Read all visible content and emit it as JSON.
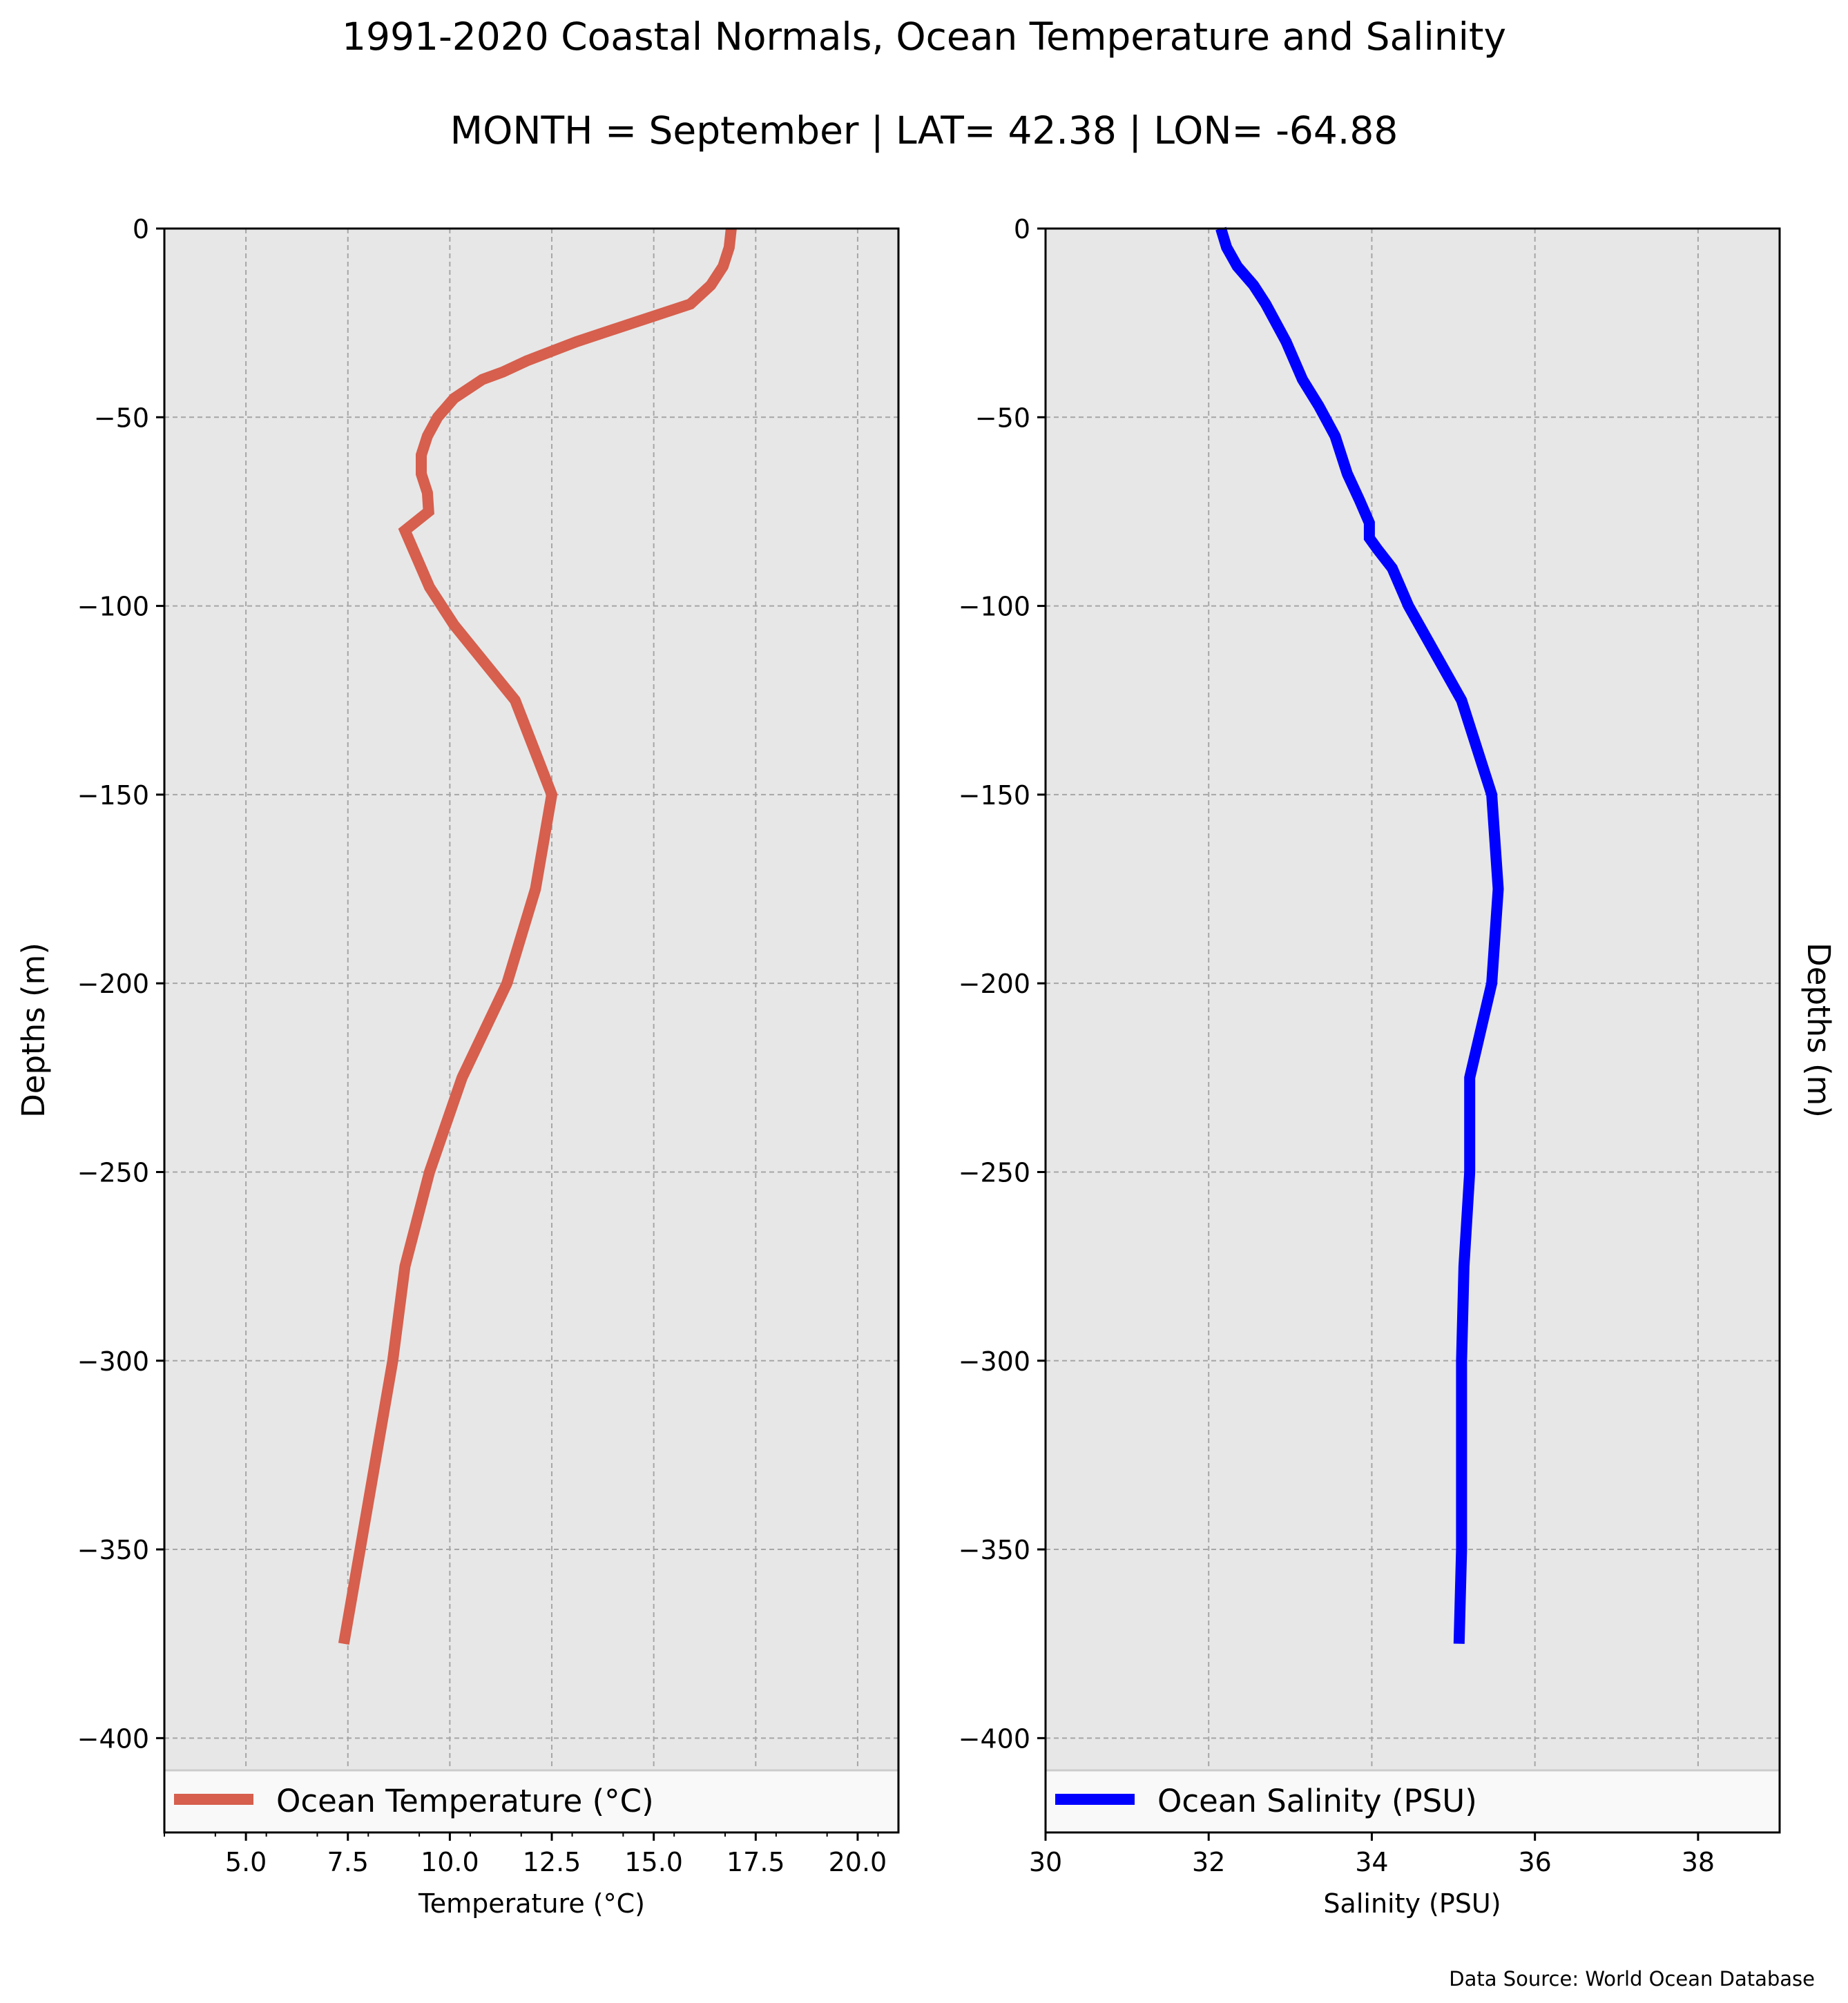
{
  "title": "1991-2020 Coastal Normals, Ocean Temperature and Salinity",
  "subtitle": "MONTH = September | LAT= 42.38 | LON= -64.88",
  "source_note": "Data Source: World Ocean Database",
  "colors": {
    "temperature": "#d65f4d",
    "salinity": "#0000ff",
    "plot_bg": "#e7e7e7",
    "grid": "#a6a6a6"
  },
  "chart_data": [
    {
      "type": "line",
      "xlabel": "Temperature ($^\\circ$C)",
      "xlabel_text": "Temperature (°C)",
      "ylabel": "Depths (m)",
      "xlim": [
        3,
        21
      ],
      "ylim": [
        -425,
        0
      ],
      "xticks": [
        5.0,
        7.5,
        10.0,
        12.5,
        15.0,
        17.5,
        20.0
      ],
      "xtick_labels": [
        "5.0",
        "7.5",
        "10.0",
        "12.5",
        "15.0",
        "17.5",
        "20.0"
      ],
      "yticks": [
        0,
        -50,
        -100,
        -150,
        -200,
        -250,
        -300,
        -350,
        -400
      ],
      "ytick_labels": [
        "0",
        "−50",
        "−100",
        "−150",
        "−200",
        "−250",
        "−300",
        "−350",
        "−400"
      ],
      "grid": true,
      "legend_position": "bottom",
      "series": [
        {
          "name": "Ocean Temperature (°C)",
          "x": [
            16.9,
            16.85,
            16.7,
            16.4,
            15.9,
            14.5,
            13.1,
            11.9,
            11.3,
            10.8,
            10.1,
            9.7,
            9.45,
            9.3,
            9.3,
            9.45,
            9.48,
            8.9,
            9.1,
            9.5,
            10.1,
            11.6,
            12.5,
            12.1,
            11.4,
            10.3,
            9.5,
            8.9,
            8.6,
            8.2,
            7.8,
            7.4
          ],
          "y": [
            0,
            -5,
            -10,
            -15,
            -20,
            -25,
            -30,
            -35,
            -38,
            -40,
            -45,
            -50,
            -55,
            -60,
            -65,
            -70,
            -75,
            -80,
            -85,
            -95,
            -105,
            -125,
            -150,
            -175,
            -200,
            -225,
            -250,
            -275,
            -300,
            -325,
            -350,
            -375
          ]
        }
      ]
    },
    {
      "type": "line",
      "xlabel": "Salinity (PSU)",
      "ylabel": "Depths (m)",
      "xlim": [
        30,
        39
      ],
      "ylim": [
        -425,
        0
      ],
      "xticks": [
        30,
        32,
        34,
        36,
        38
      ],
      "xtick_labels": [
        "30",
        "32",
        "34",
        "36",
        "38"
      ],
      "yticks": [
        0,
        -50,
        -100,
        -150,
        -200,
        -250,
        -300,
        -350,
        -400
      ],
      "ytick_labels": [
        "0",
        "−50",
        "−100",
        "−150",
        "−200",
        "−250",
        "−300",
        "−350",
        "−400"
      ],
      "grid": true,
      "legend_position": "bottom",
      "series": [
        {
          "name": "Ocean Salinity (PSU)",
          "x": [
            32.15,
            32.22,
            32.35,
            32.55,
            32.7,
            32.95,
            33.15,
            33.35,
            33.55,
            33.7,
            33.85,
            33.97,
            33.97,
            34.07,
            34.25,
            34.45,
            35.1,
            35.47,
            35.55,
            35.47,
            35.2,
            35.2,
            35.13,
            35.1,
            35.1,
            35.07
          ],
          "y": [
            0,
            -5,
            -10,
            -15,
            -20,
            -30,
            -40,
            -47,
            -55,
            -65,
            -72,
            -78,
            -82,
            -85,
            -90,
            -100,
            -125,
            -150,
            -175,
            -200,
            -225,
            -250,
            -275,
            -300,
            -350,
            -375
          ]
        }
      ]
    }
  ]
}
